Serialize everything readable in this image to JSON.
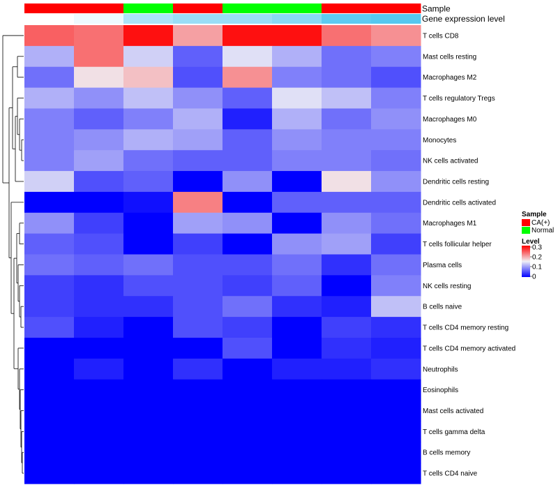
{
  "chart_data": {
    "type": "heatmap",
    "title": "",
    "rows": [
      "T cells CD8",
      "Mast cells resting",
      "Macrophages M2",
      "T cells regulatory  Tregs",
      "Macrophages M0",
      "Monocytes",
      "NK cells activated",
      "Dendritic cells resting",
      "Dendritic cells activated",
      "Macrophages M1",
      "T cells follicular helper",
      "Plasma cells",
      "NK cells resting",
      "B cells naive",
      "T cells CD4 memory resting",
      "T cells CD4 memory activated",
      "Neutrophils",
      "Eosinophils",
      "Mast cells activated",
      "T cells gamma delta",
      "B cells memory",
      "T cells CD4 naive"
    ],
    "column_annotations": {
      "sample": [
        "CA(+)",
        "CA(+)",
        "Normal",
        "CA(+)",
        "Normal",
        "Normal",
        "CA(+)",
        "CA(+)"
      ],
      "gene_expression_level": [
        0.0,
        0.1,
        0.5,
        0.6,
        0.6,
        0.7,
        0.95,
        1.0
      ]
    },
    "values": [
      [
        0.24,
        0.23,
        0.29,
        0.2,
        0.29,
        0.29,
        0.23,
        0.21
      ],
      [
        0.11,
        0.23,
        0.13,
        0.06,
        0.14,
        0.11,
        0.07,
        0.08
      ],
      [
        0.07,
        0.16,
        0.18,
        0.05,
        0.21,
        0.08,
        0.07,
        0.05
      ],
      [
        0.11,
        0.09,
        0.12,
        0.09,
        0.06,
        0.14,
        0.12,
        0.08
      ],
      [
        0.08,
        0.06,
        0.08,
        0.11,
        0.02,
        0.11,
        0.07,
        0.09
      ],
      [
        0.08,
        0.09,
        0.11,
        0.1,
        0.06,
        0.09,
        0.08,
        0.08
      ],
      [
        0.08,
        0.1,
        0.07,
        0.06,
        0.06,
        0.08,
        0.08,
        0.07
      ],
      [
        0.13,
        0.05,
        0.06,
        0.0,
        0.09,
        0.0,
        0.16,
        0.09
      ],
      [
        0.0,
        0.0,
        0.01,
        0.22,
        0.0,
        0.06,
        0.06,
        0.06
      ],
      [
        0.09,
        0.04,
        0.0,
        0.1,
        0.09,
        0.0,
        0.09,
        0.07
      ],
      [
        0.06,
        0.05,
        0.0,
        0.04,
        0.0,
        0.09,
        0.1,
        0.04
      ],
      [
        0.07,
        0.06,
        0.07,
        0.05,
        0.05,
        0.07,
        0.03,
        0.07
      ],
      [
        0.04,
        0.03,
        0.05,
        0.05,
        0.04,
        0.06,
        0.0,
        0.08
      ],
      [
        0.04,
        0.03,
        0.03,
        0.05,
        0.07,
        0.03,
        0.02,
        0.12
      ],
      [
        0.05,
        0.02,
        0.0,
        0.05,
        0.04,
        0.0,
        0.04,
        0.03
      ],
      [
        0.0,
        0.0,
        0.0,
        0.0,
        0.05,
        0.0,
        0.03,
        0.02
      ],
      [
        0.0,
        0.02,
        0.0,
        0.03,
        0.0,
        0.02,
        0.02,
        0.03
      ],
      [
        0.0,
        0.0,
        0.0,
        0.0,
        0.0,
        0.0,
        0.0,
        0.0
      ],
      [
        0.0,
        0.0,
        0.0,
        0.0,
        0.0,
        0.0,
        0.0,
        0.0
      ],
      [
        0.0,
        0.0,
        0.0,
        0.0,
        0.0,
        0.0,
        0.0,
        0.0
      ],
      [
        0.0,
        0.0,
        0.0,
        0.0,
        0.0,
        0.0,
        0.0,
        0.0
      ],
      [
        0.0,
        0.0,
        0.0,
        0.0,
        0.0,
        0.0,
        0.0,
        0.0
      ]
    ],
    "color_scale": {
      "min": 0,
      "max": 0.3,
      "low": "#0000ff",
      "mid": "#f0f0f5",
      "high": "#ff0000"
    },
    "legend": {
      "position": "right",
      "sample_title": "Sample",
      "sample_entries": [
        {
          "label": "CA(+)",
          "color": "#ff0000"
        },
        {
          "label": "Normal",
          "color": "#00ff00"
        }
      ],
      "level_title": "Level",
      "level_ticks": [
        "0.3",
        "0.2",
        "0.1",
        "0"
      ]
    },
    "annotation_labels": {
      "sample": "Sample",
      "gene_expression_level": "Gene expression level"
    },
    "gene_level_colors": {
      "low": "#ffffff",
      "high": "#56c8f0"
    }
  }
}
